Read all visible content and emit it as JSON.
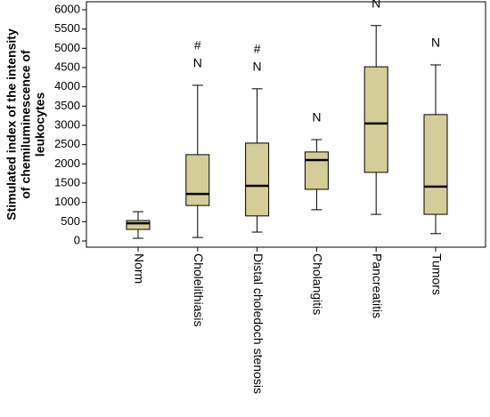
{
  "chart_data": {
    "type": "box",
    "ylabel": [
      "Stimulated index of the intensity",
      "of chemiluminescence of",
      "leukocytes"
    ],
    "categories": [
      "Norm",
      "Cholelithiasis",
      "Distal choledoch stenosis",
      "Cholangitis",
      "Pancreatitis",
      "Tumors"
    ],
    "boxes": [
      {
        "min": 70,
        "q1": 300,
        "median": 460,
        "q3": 530,
        "max": 760
      },
      {
        "min": 90,
        "q1": 920,
        "median": 1220,
        "q3": 2240,
        "max": 4040
      },
      {
        "min": 230,
        "q1": 650,
        "median": 1430,
        "q3": 2540,
        "max": 3950
      },
      {
        "min": 810,
        "q1": 1340,
        "median": 2100,
        "q3": 2310,
        "max": 2630
      },
      {
        "min": 690,
        "q1": 1780,
        "median": 3050,
        "q3": 4520,
        "max": 5590
      },
      {
        "min": 190,
        "q1": 690,
        "median": 1410,
        "q3": 3280,
        "max": 4570
      }
    ],
    "color": "#d4cd98",
    "annotations": [
      {
        "category": "Cholelithiasis",
        "lines": [
          "#",
          "N"
        ]
      },
      {
        "category": "Distal choledoch stenosis",
        "lines": [
          "#",
          "N"
        ]
      },
      {
        "category": "Cholangitis",
        "lines": [
          "N"
        ]
      },
      {
        "category": "Pancreatitis",
        "lines": [
          "N"
        ]
      },
      {
        "category": "Tumors",
        "lines": [
          "N"
        ]
      }
    ],
    "ylim": [
      0,
      6000
    ],
    "yticks": [
      0,
      500,
      1000,
      1500,
      2000,
      2500,
      3000,
      3500,
      4000,
      4500,
      5000,
      5500,
      6000
    ]
  }
}
